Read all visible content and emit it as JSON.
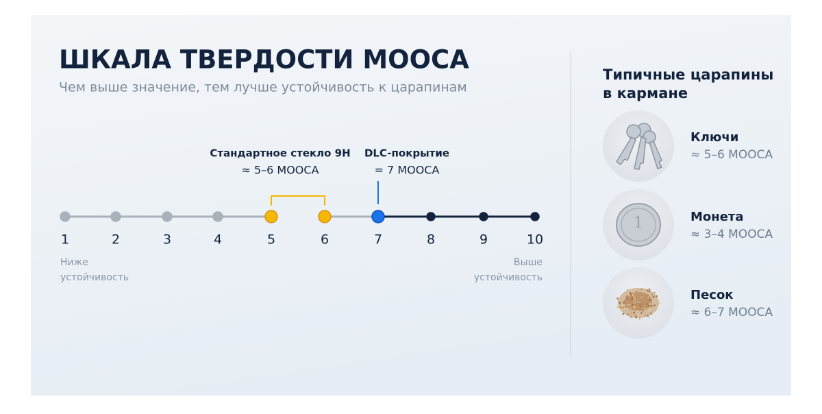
{
  "header": {
    "title": "ШКАЛА ТВЕРДОСТИ МООСА",
    "subtitle": "Чем выше значение, тем лучше устойчивость к царапинам"
  },
  "scale": {
    "points": [
      1,
      2,
      3,
      4,
      5,
      6,
      7,
      8,
      9,
      10
    ],
    "low_label": [
      "Ниже",
      "устойчивость"
    ],
    "high_label": [
      "Выше",
      "устойчивость"
    ],
    "annotations": [
      {
        "title": "Стандартное стекло 9H",
        "value": "≈ 5–6 МООСА"
      },
      {
        "title": "DLC-покрытие",
        "value": "= 7 МООСА"
      }
    ]
  },
  "sidebar": {
    "title": [
      "Типичные царапины",
      "в кармане"
    ],
    "items": [
      {
        "name": "Ключи",
        "value": "≈ 5–6 МООСА"
      },
      {
        "name": "Монета",
        "value": "≈ 3–4 МООСА"
      },
      {
        "name": "Песок",
        "value": "≈ 6–7 МООСА"
      }
    ]
  }
}
